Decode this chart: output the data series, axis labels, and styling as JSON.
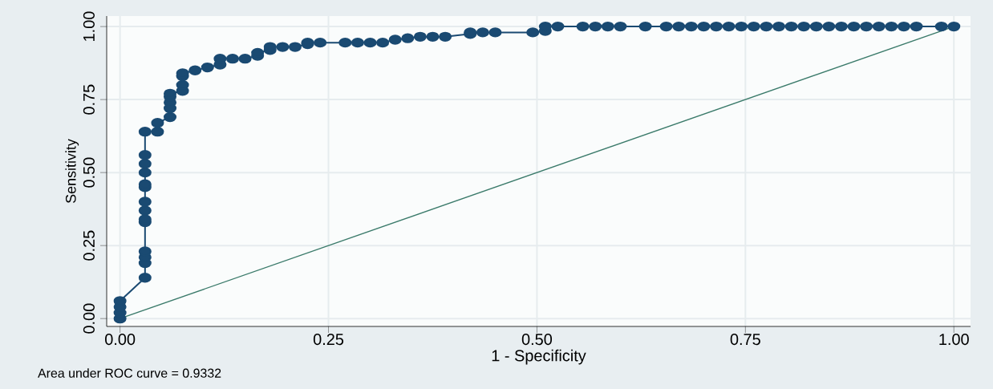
{
  "chart_data": {
    "type": "line",
    "xlabel": "1 - Specificity",
    "ylabel": "Sensitivity",
    "annotations": [
      "Area under ROC curve = 0.9332"
    ],
    "xlim": [
      -0.016,
      1.02
    ],
    "ylim": [
      -0.027,
      1.036
    ],
    "xticks": [
      {
        "value": 0,
        "label": "0.00"
      },
      {
        "value": 0.25,
        "label": "0.25"
      },
      {
        "value": 0.5,
        "label": "0.50"
      },
      {
        "value": 0.75,
        "label": "0.75"
      },
      {
        "value": 1,
        "label": "1.00"
      }
    ],
    "yticks": [
      {
        "value": 0,
        "label": "0.00"
      },
      {
        "value": 0.25,
        "label": "0.25"
      },
      {
        "value": 0.5,
        "label": "0.50"
      },
      {
        "value": 0.75,
        "label": "0.75"
      },
      {
        "value": 1,
        "label": "1.00"
      }
    ],
    "grid": true,
    "series": [
      {
        "color": "#1a4a72",
        "marker": "circle",
        "x": [
          0,
          0,
          0,
          0,
          0.03,
          0.03,
          0.03,
          0.03,
          0.03,
          0.03,
          0.03,
          0.03,
          0.03,
          0.03,
          0.03,
          0.03,
          0.03,
          0.03,
          0.045,
          0.045,
          0.06,
          0.06,
          0.06,
          0.06,
          0.06,
          0.075,
          0.075,
          0.075,
          0.075,
          0.09,
          0.105,
          0.12,
          0.12,
          0.135,
          0.15,
          0.165,
          0.165,
          0.18,
          0.18,
          0.195,
          0.21,
          0.225,
          0.225,
          0.24,
          0.27,
          0.285,
          0.3,
          0.315,
          0.33,
          0.345,
          0.36,
          0.375,
          0.39,
          0.42,
          0.42,
          0.435,
          0.45,
          0.495,
          0.51,
          0.51,
          0.525,
          0.555,
          0.57,
          0.585,
          0.6,
          0.63,
          0.655,
          0.67,
          0.685,
          0.7,
          0.715,
          0.73,
          0.745,
          0.76,
          0.775,
          0.79,
          0.805,
          0.82,
          0.835,
          0.85,
          0.865,
          0.88,
          0.895,
          0.91,
          0.925,
          0.94,
          0.955,
          0.985,
          1
        ],
        "values": [
          0,
          0.02,
          0.04,
          0.06,
          0.14,
          0.19,
          0.21,
          0.23,
          0.33,
          0.34,
          0.37,
          0.4,
          0.45,
          0.46,
          0.5,
          0.53,
          0.56,
          0.64,
          0.64,
          0.67,
          0.69,
          0.72,
          0.74,
          0.76,
          0.77,
          0.78,
          0.8,
          0.83,
          0.84,
          0.85,
          0.86,
          0.87,
          0.89,
          0.89,
          0.89,
          0.9,
          0.91,
          0.92,
          0.93,
          0.93,
          0.93,
          0.94,
          0.945,
          0.945,
          0.945,
          0.945,
          0.945,
          0.945,
          0.955,
          0.96,
          0.965,
          0.965,
          0.965,
          0.975,
          0.98,
          0.98,
          0.98,
          0.98,
          0.985,
          1,
          1,
          1,
          1,
          1,
          1,
          1,
          1,
          1,
          1,
          1,
          1,
          1,
          1,
          1,
          1,
          1,
          1,
          1,
          1,
          1,
          1,
          1,
          1,
          1,
          1,
          1,
          1,
          1,
          1
        ]
      },
      {
        "color": "#3a7a6a",
        "marker": "none",
        "x": [
          0,
          1
        ],
        "values": [
          0,
          1
        ]
      }
    ]
  }
}
